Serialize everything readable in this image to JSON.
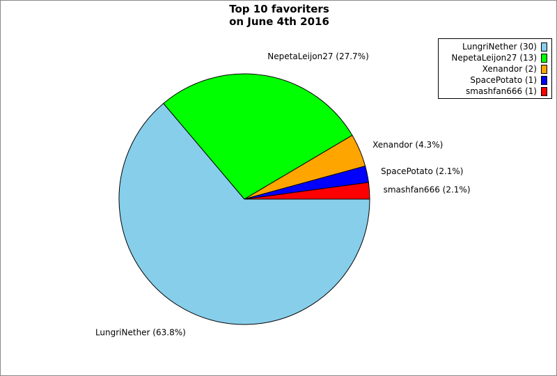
{
  "chart_data": {
    "type": "pie",
    "title": [
      "Top 10 favoriters",
      "on June 4th 2016"
    ],
    "slices": [
      {
        "name": "LungriNether",
        "value": 30,
        "percent_label": "LungriNether (63.8%)",
        "legend_label": "LungriNether (30)",
        "color": "#87CEEB"
      },
      {
        "name": "NepetaLeijon27",
        "value": 13,
        "percent_label": "NepetaLeijon27 (27.7%)",
        "legend_label": "NepetaLeijon27 (13)",
        "color": "#00FF00"
      },
      {
        "name": "Xenandor",
        "value": 2,
        "percent_label": "Xenandor (4.3%)",
        "legend_label": "Xenandor (2)",
        "color": "#FFA500"
      },
      {
        "name": "SpacePotato",
        "value": 1,
        "percent_label": "SpacePotato (2.1%)",
        "legend_label": "SpacePotato (1)",
        "color": "#0000FF"
      },
      {
        "name": "smashfan666",
        "value": 1,
        "percent_label": "smashfan666 (2.1%)",
        "legend_label": "smashfan666 (1)",
        "color": "#FF0000"
      }
    ],
    "legend_position": "top-right"
  }
}
